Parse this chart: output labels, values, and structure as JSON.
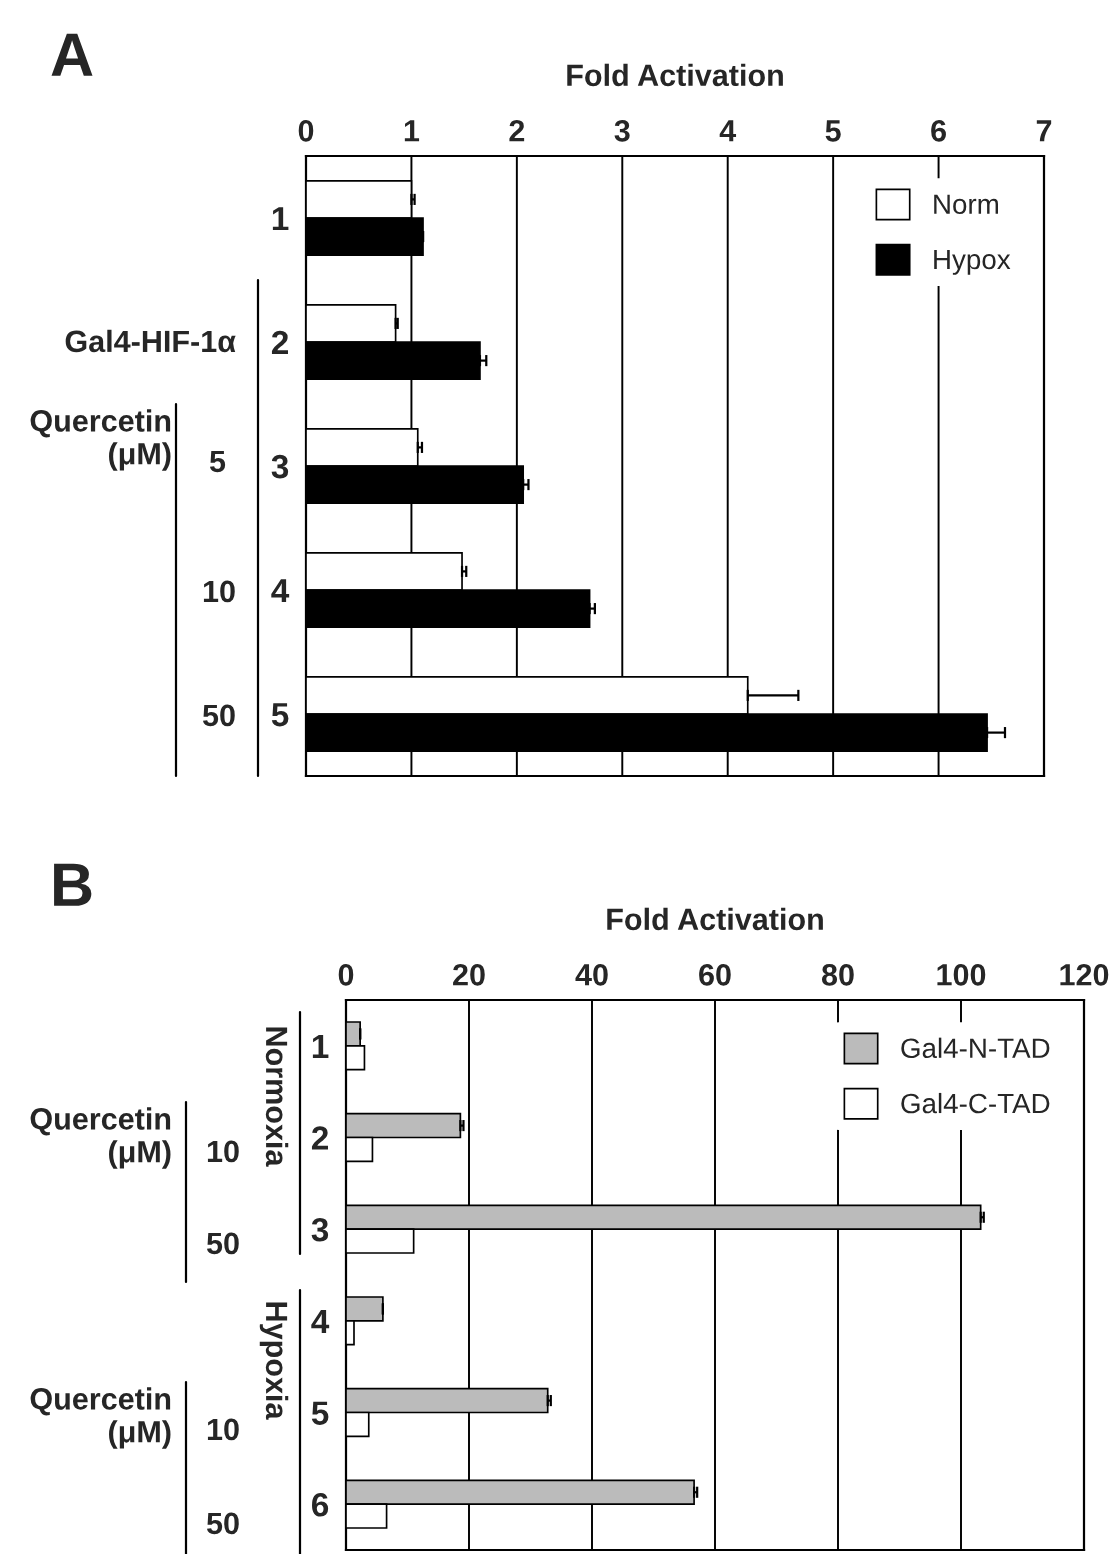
{
  "chart_data": [
    {
      "type": "bar",
      "orientation": "horizontal",
      "xlabel": "Fold Activation",
      "categories": [
        "1",
        "2",
        "3",
        "4",
        "5"
      ],
      "series": [
        {
          "name": "Norm",
          "color": "#ffffff",
          "values": [
            1.0,
            0.85,
            1.06,
            1.48,
            4.19
          ],
          "errors": [
            0.03,
            0.02,
            0.04,
            0.04,
            0.48
          ]
        },
        {
          "name": "Hypox",
          "color": "#000000",
          "values": [
            1.11,
            1.65,
            2.06,
            2.69,
            6.46
          ],
          "errors": [
            null,
            0.06,
            0.05,
            0.05,
            0.17
          ]
        }
      ],
      "xlim": [
        0,
        7
      ],
      "xticks": [
        0,
        1,
        2,
        3,
        4,
        5,
        6,
        7
      ],
      "grid": "x",
      "legend": "top right",
      "annotations": [
        "A",
        "Gal4-HIF-1α",
        "Quercetin\n(μM)",
        "5",
        "10",
        "50"
      ]
    },
    {
      "type": "bar",
      "orientation": "horizontal",
      "xlabel": "Fold Activation",
      "categories": [
        "1",
        "2",
        "3",
        "4",
        "5",
        "6"
      ],
      "series": [
        {
          "name": "Gal4-N-TAD",
          "color": "#bbbbbb",
          "values": [
            2.3,
            18.6,
            103.2,
            6,
            32.8,
            56.6
          ],
          "errors": [
            null,
            0.5,
            0.5,
            null,
            0.5,
            0.5
          ]
        },
        {
          "name": "Gal4-C-TAD",
          "color": "#ffffff",
          "values": [
            3,
            4.3,
            11,
            1.3,
            3.7,
            6.6
          ]
        }
      ],
      "xlim": [
        0,
        120
      ],
      "xticks": [
        0,
        20,
        40,
        60,
        80,
        100,
        120
      ],
      "grid": "x",
      "legend": "top right",
      "annotations": [
        "B",
        "Normoxia",
        "Hypoxia",
        "Quercetin\n(μM)",
        "10",
        "50",
        "Quercetin\n(μM)",
        "10",
        "50"
      ]
    }
  ]
}
